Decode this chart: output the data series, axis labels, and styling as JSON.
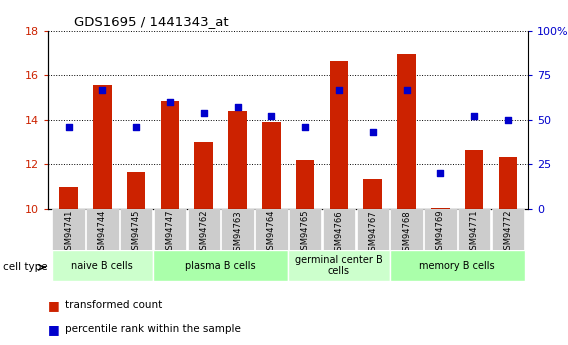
{
  "title": "GDS1695 / 1441343_at",
  "samples": [
    "GSM94741",
    "GSM94744",
    "GSM94745",
    "GSM94747",
    "GSM94762",
    "GSM94763",
    "GSM94764",
    "GSM94765",
    "GSM94766",
    "GSM94767",
    "GSM94768",
    "GSM94769",
    "GSM94771",
    "GSM94772"
  ],
  "bar_values": [
    11.0,
    15.55,
    11.65,
    14.85,
    13.0,
    14.4,
    13.9,
    12.2,
    16.65,
    11.35,
    16.95,
    10.05,
    12.65,
    12.35
  ],
  "dot_values": [
    46,
    67,
    46,
    60,
    54,
    57,
    52,
    46,
    67,
    43,
    67,
    20,
    52,
    50
  ],
  "ylim_left": [
    10,
    18
  ],
  "ylim_right": [
    0,
    100
  ],
  "yticks_left": [
    10,
    12,
    14,
    16,
    18
  ],
  "yticks_right": [
    0,
    25,
    50,
    75,
    100
  ],
  "ytick_labels_right": [
    "0",
    "25",
    "50",
    "75",
    "100%"
  ],
  "bar_color": "#cc2200",
  "dot_color": "#0000cc",
  "cell_groups": [
    {
      "label": "naive B cells",
      "start": 0,
      "end": 3,
      "color": "#ccffcc"
    },
    {
      "label": "plasma B cells",
      "start": 3,
      "end": 7,
      "color": "#aaffaa"
    },
    {
      "label": "germinal center B\ncells",
      "start": 7,
      "end": 10,
      "color": "#ccffcc"
    },
    {
      "label": "memory B cells",
      "start": 10,
      "end": 14,
      "color": "#aaffaa"
    }
  ],
  "cell_type_label": "cell type",
  "legend_bar_label": "transformed count",
  "legend_dot_label": "percentile rank within the sample",
  "bar_color_legend": "#cc2200",
  "dot_color_legend": "#0000cc"
}
